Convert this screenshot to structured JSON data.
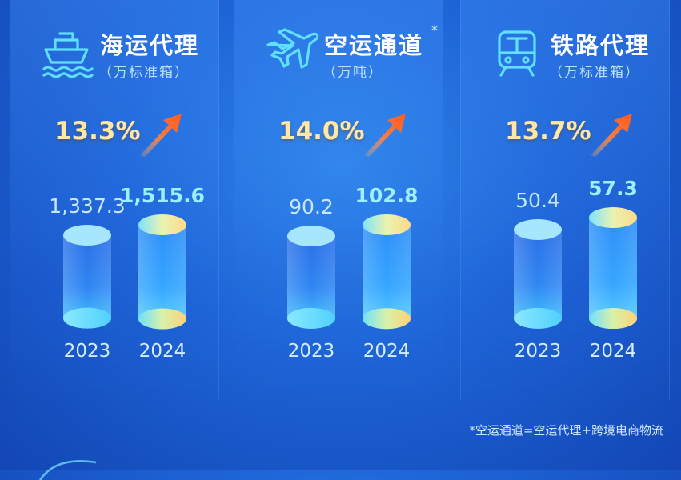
{
  "chart_data": [
    {
      "type": "bar",
      "title": "海运代理",
      "unit": "（万标准箱）",
      "categories": [
        "2023",
        "2024"
      ],
      "values": [
        1337.3,
        1515.6
      ],
      "value_labels": [
        "1,337.3",
        "1,515.6"
      ],
      "growth": "13.3%",
      "icon": "ship-icon"
    },
    {
      "type": "bar",
      "title": "空运通道",
      "title_marker": "*",
      "unit": "（万吨）",
      "categories": [
        "2023",
        "2024"
      ],
      "values": [
        90.2,
        102.8
      ],
      "value_labels": [
        "90.2",
        "102.8"
      ],
      "growth": "14.0%",
      "icon": "airplane-icon"
    },
    {
      "type": "bar",
      "title": "铁路代理",
      "unit": "（万标准箱）",
      "categories": [
        "2023",
        "2024"
      ],
      "values": [
        50.4,
        57.3
      ],
      "value_labels": [
        "50.4",
        "57.3"
      ],
      "growth": "13.7%",
      "icon": "train-icon"
    }
  ],
  "footnote": "*空运通道=空运代理+跨境电商物流",
  "colors": {
    "background": "#1d63d6",
    "bar_2023": "#2c7ff0",
    "bar_2024": "#3aa8ff",
    "cap_2023": "#9fe2ff",
    "cap_2024": "#f7ec9a",
    "growth_text": "#ffe8a6",
    "arrow": "#ff6a30"
  }
}
